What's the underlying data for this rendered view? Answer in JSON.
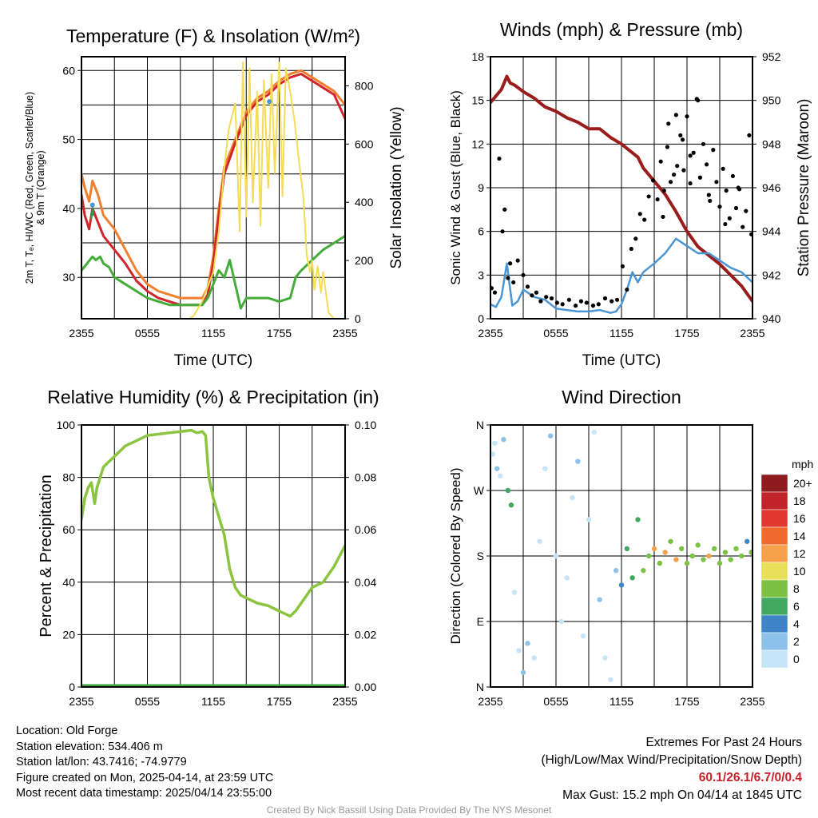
{
  "colors": {
    "temperature": "#d0262b",
    "wind_chill": "#2e9b4b",
    "dewpoint": "#44ad3a",
    "temp_9m": "#f07f2e",
    "insolation": "#f5dc55",
    "wind_speed": "#4a95d4",
    "gust": "#000000",
    "pressure": "#9b1c1c",
    "humidity": "#8bc540",
    "precip": "#3aa53a"
  },
  "chart_data": [
    {
      "id": "temp",
      "type": "line",
      "title": "Temperature (F) & Insolation (W/m²)",
      "xlabel": "Time (UTC)",
      "ylabel_left_lines": [
        "2m T, Tₑ, HI/WC (Red, Green, Scarlet/Blue)",
        "& 9m T (Orange)"
      ],
      "ylabel_right": "Solar Insolation (Yellow)",
      "x_ticks": [
        "2355",
        "0555",
        "1155",
        "1755",
        "2355"
      ],
      "ylim": [
        24,
        62
      ],
      "y_ticks": [
        30,
        40,
        50,
        60
      ],
      "y2lim": [
        0,
        900
      ],
      "y2_ticks": [
        0,
        200,
        400,
        600,
        800
      ],
      "series": [
        {
          "color_key": "temp_9m",
          "axis": "left",
          "width": 3,
          "x": [
            0,
            0.3,
            0.7,
            1,
            1.5,
            2,
            3,
            4,
            5,
            6,
            7,
            8,
            9,
            10,
            11,
            11.5,
            12,
            12.5,
            13,
            14,
            15,
            16,
            17,
            18,
            19,
            20,
            21,
            22,
            23,
            24
          ],
          "y": [
            45,
            43,
            41,
            44,
            42,
            39,
            37,
            34,
            31,
            29,
            28,
            27.5,
            27,
            27,
            27,
            28.5,
            33,
            40,
            46,
            50,
            54,
            56,
            57,
            58.5,
            59.5,
            60,
            59,
            58,
            57,
            55
          ]
        },
        {
          "color_key": "temperature",
          "axis": "left",
          "width": 3,
          "x": [
            0,
            0.3,
            0.7,
            1,
            1.5,
            2,
            3,
            4,
            5,
            6,
            7,
            8,
            9,
            10,
            11,
            11.5,
            12,
            12.5,
            13,
            14,
            15,
            16,
            17,
            18,
            19,
            20,
            21,
            22,
            23,
            24
          ],
          "y": [
            42,
            39,
            37,
            40,
            38,
            36,
            34,
            32,
            29.5,
            28,
            27,
            26.5,
            26,
            26,
            26,
            27.5,
            32,
            39,
            45,
            49.5,
            53.5,
            55.5,
            56.5,
            58,
            59,
            59.5,
            58.5,
            57.5,
            56.5,
            53
          ]
        },
        {
          "color_key": "dewpoint",
          "axis": "left",
          "width": 3,
          "x": [
            0,
            0.5,
            1,
            1.3,
            1.7,
            2,
            2.5,
            3,
            4,
            5,
            6,
            7,
            8,
            9,
            10,
            11,
            11.5,
            12,
            12.5,
            13,
            13.5,
            14,
            14.5,
            15,
            16,
            17,
            18,
            19,
            19.5,
            20,
            21,
            22,
            23,
            24
          ],
          "y": [
            31,
            32,
            33,
            32.5,
            33,
            32,
            31.5,
            30,
            29,
            28,
            27,
            26.5,
            26,
            26,
            26,
            26,
            27,
            29,
            31,
            30,
            32.5,
            29,
            25.5,
            27,
            27,
            27,
            26.5,
            27,
            30,
            31,
            32.5,
            34,
            35,
            36
          ]
        },
        {
          "color_key": "wind_chill",
          "axis": "left",
          "width": 2,
          "x": [
            0.9,
            1,
            1.1
          ],
          "y": [
            38.5,
            40,
            39
          ]
        },
        {
          "color_key": "insolation",
          "axis": "right",
          "width": 2,
          "x": [
            0,
            9.8,
            10.2,
            11,
            12,
            12.5,
            13,
            13.4,
            14,
            14.4,
            14.7,
            15,
            15.3,
            15.6,
            16,
            16.3,
            16.6,
            17,
            17.3,
            17.6,
            18,
            18.3,
            18.6,
            19,
            19.4,
            19.8,
            20.2,
            20.5,
            20.8,
            21,
            21.2,
            21.5,
            21.8,
            22,
            22.5,
            23,
            24
          ],
          "y": [
            0,
            0,
            10,
            60,
            160,
            300,
            520,
            650,
            740,
            300,
            880,
            350,
            860,
            400,
            780,
            320,
            820,
            450,
            840,
            500,
            880,
            420,
            860,
            780,
            680,
            540,
            420,
            220,
            160,
            200,
            100,
            180,
            90,
            160,
            20,
            0,
            0
          ]
        }
      ],
      "markers": [
        {
          "color_key": "wind_speed",
          "x": 1.0,
          "y": 40.5
        },
        {
          "color_key": "wind_speed",
          "x": 17.1,
          "y": 55.5
        }
      ]
    },
    {
      "id": "wind",
      "type": "line",
      "title": "Winds (mph) & Pressure (mb)",
      "xlabel": "Time (UTC)",
      "ylabel_left": "Sonic Wind & Gust (Blue, Black)",
      "ylabel_right": "Station Pressure (Maroon)",
      "x_ticks": [
        "2355",
        "0555",
        "1155",
        "1755",
        "2355"
      ],
      "ylim": [
        0,
        18
      ],
      "y_ticks": [
        0,
        3,
        6,
        9,
        12,
        15,
        18
      ],
      "y2lim": [
        940,
        952
      ],
      "y2_ticks": [
        940,
        942,
        944,
        946,
        948,
        950,
        952
      ],
      "series": [
        {
          "color_key": "pressure",
          "axis": "right",
          "width": 4,
          "x": [
            0,
            0.5,
            1,
            1.5,
            1.8,
            2.2,
            3,
            4,
            5,
            6,
            7,
            8,
            9,
            10,
            11,
            12,
            13,
            13.5,
            14,
            15,
            16,
            17,
            18,
            19,
            20,
            21,
            22,
            23,
            24
          ],
          "y": [
            949.9,
            950.2,
            950.5,
            951.1,
            950.8,
            950.7,
            950.4,
            950.1,
            949.7,
            949.5,
            949.2,
            949.0,
            948.7,
            948.7,
            948.3,
            948.0,
            947.6,
            947.4,
            946.9,
            946.3,
            945.7,
            944.9,
            944.0,
            943.3,
            942.9,
            942.5,
            942.0,
            941.5,
            940.8
          ]
        },
        {
          "color_key": "wind_speed",
          "axis": "left",
          "width": 2.5,
          "x": [
            0,
            0.5,
            1,
            1.5,
            2,
            2.5,
            3,
            4,
            5,
            6,
            7,
            8,
            9,
            10,
            11,
            11.5,
            12,
            12.5,
            13,
            13.5,
            14,
            15,
            16,
            17,
            18,
            19,
            20,
            21,
            22,
            23,
            24
          ],
          "y": [
            1.0,
            0.8,
            1.5,
            3.8,
            0.9,
            1.2,
            2.0,
            1.5,
            1.3,
            0.7,
            0.6,
            0.5,
            0.5,
            0.6,
            0.4,
            0.5,
            1.0,
            2.0,
            3.2,
            2.5,
            3.2,
            3.8,
            4.5,
            5.5,
            5.0,
            4.5,
            4.5,
            4.0,
            3.5,
            3.2,
            2.5
          ]
        },
        {
          "color_key": "gust",
          "axis": "left",
          "width": 0,
          "points": true,
          "x": [
            0.1,
            0.4,
            0.8,
            1.1,
            1.3,
            1.6,
            1.8,
            2.1,
            2.5,
            3.0,
            3.4,
            3.8,
            4.2,
            4.6,
            5.1,
            5.6,
            6.1,
            6.6,
            7.2,
            7.8,
            8.3,
            8.8,
            9.4,
            9.9,
            10.5,
            11.1,
            11.6,
            12.1,
            12.5,
            12.9,
            13.3,
            13.7,
            14.1,
            14.5,
            14.9,
            15.3,
            15.6,
            15.9,
            16.2,
            16.5,
            16.8,
            17.1,
            17.4,
            17.7,
            18.0,
            18.3,
            18.6,
            18.9,
            19.2,
            19.5,
            19.8,
            20.1,
            20.4,
            20.7,
            21.0,
            21.3,
            21.6,
            21.9,
            22.2,
            22.5,
            22.8,
            23.1,
            23.4,
            23.7,
            23.9,
            16.3,
            17.0,
            17.6,
            18.3,
            15.8,
            19.0,
            20.0,
            21.5,
            22.7
          ],
          "y": [
            2.1,
            1.8,
            11.0,
            6.0,
            7.5,
            2.8,
            3.8,
            2.5,
            4.0,
            3.0,
            2.2,
            1.6,
            1.8,
            1.2,
            1.5,
            1.4,
            1.1,
            1.0,
            1.3,
            0.9,
            1.2,
            1.1,
            0.9,
            1.0,
            1.4,
            1.2,
            1.3,
            3.6,
            2.0,
            4.8,
            5.5,
            7.2,
            6.8,
            8.4,
            9.5,
            8.2,
            10.8,
            8.8,
            11.8,
            9.4,
            9.9,
            10.5,
            12.6,
            10.2,
            13.9,
            9.3,
            11.4,
            15.1,
            9.7,
            12.0,
            10.6,
            8.1,
            11.6,
            9.4,
            7.7,
            10.3,
            8.8,
            6.9,
            9.8,
            7.6,
            8.9,
            6.3,
            7.4,
            12.6,
            5.8,
            13.4,
            14.0,
            12.3,
            11.2,
            7.0,
            15.0,
            8.5,
            6.5,
            9.0
          ]
        }
      ]
    },
    {
      "id": "rh",
      "type": "line",
      "title": "Relative Humidity (%) & Precipitation (in)",
      "xlabel": "",
      "ylabel_left": "Percent & Precipitation",
      "ylabel_right": "",
      "x_ticks": [
        "2355",
        "0555",
        "1155",
        "1755",
        "2355"
      ],
      "ylim": [
        0,
        100
      ],
      "y_ticks": [
        0,
        20,
        40,
        60,
        80,
        100
      ],
      "y2lim": [
        0,
        0.1
      ],
      "y2_ticks": [
        "0.00",
        "0.02",
        "0.04",
        "0.06",
        "0.08",
        "0.10"
      ],
      "series": [
        {
          "color_key": "humidity",
          "axis": "left",
          "width": 3.5,
          "x": [
            0,
            0.3,
            0.6,
            0.9,
            1.2,
            1.4,
            1.7,
            2.0,
            2.5,
            3,
            3.5,
            4,
            5,
            6,
            7,
            8,
            9,
            10,
            10.5,
            11,
            11.3,
            11.6,
            12,
            12.5,
            13,
            13.5,
            14,
            14.5,
            15,
            16,
            17,
            17.5,
            18,
            18.5,
            19,
            19.5,
            20,
            21,
            22,
            23,
            24
          ],
          "y": [
            64,
            72,
            76,
            78,
            70,
            76,
            80,
            84,
            86,
            88,
            90,
            92,
            94,
            96,
            96.5,
            97,
            97.5,
            98,
            97,
            97.5,
            96,
            80,
            72,
            65,
            58,
            45,
            38,
            35,
            34,
            32,
            31,
            30,
            29,
            28,
            27,
            29,
            32,
            38,
            40,
            46,
            54
          ]
        },
        {
          "color_key": "precip",
          "axis": "left",
          "width": 7,
          "x": [
            0,
            24
          ],
          "y": [
            0,
            0
          ]
        }
      ]
    },
    {
      "id": "dir",
      "type": "scatter",
      "title": "Wind Direction",
      "xlabel": "",
      "ylabel_left": "Direction (Colored By Speed)",
      "x_ticks": [
        "2355",
        "0555",
        "1155",
        "1755",
        "2355"
      ],
      "ylim": [
        0,
        360
      ],
      "y_tick_labels": [
        "N",
        "E",
        "S",
        "W",
        "N"
      ],
      "y_tick_values": [
        0,
        90,
        180,
        270,
        360
      ],
      "colorbar": {
        "unit": "mph",
        "labels": [
          "20+",
          "18",
          "16",
          "14",
          "12",
          "10",
          "8",
          "6",
          "4",
          "2",
          "0"
        ],
        "colors": [
          "#8e1b1e",
          "#c0242a",
          "#e1392e",
          "#ef6a2e",
          "#f5a14c",
          "#e9df5b",
          "#7bc144",
          "#42a860",
          "#3d85c6",
          "#8cc2ea",
          "#c7e5f8"
        ]
      },
      "points": [
        [
          0.2,
          320,
          0
        ],
        [
          0.4,
          335,
          0
        ],
        [
          0.6,
          300,
          1
        ],
        [
          0.9,
          290,
          0
        ],
        [
          1.2,
          340,
          1
        ],
        [
          1.6,
          270,
          3
        ],
        [
          1.9,
          250,
          3
        ],
        [
          2.2,
          130,
          0
        ],
        [
          2.6,
          50,
          0
        ],
        [
          3.0,
          20,
          1
        ],
        [
          3.4,
          60,
          1
        ],
        [
          4.0,
          40,
          0
        ],
        [
          4.5,
          200,
          0
        ],
        [
          5.0,
          300,
          0
        ],
        [
          5.5,
          345,
          1
        ],
        [
          6.0,
          180,
          0
        ],
        [
          6.5,
          90,
          0
        ],
        [
          7.0,
          150,
          0
        ],
        [
          7.5,
          260,
          0
        ],
        [
          8.0,
          310,
          1
        ],
        [
          8.5,
          70,
          0
        ],
        [
          9.0,
          230,
          0
        ],
        [
          9.5,
          350,
          0
        ],
        [
          10.0,
          120,
          1
        ],
        [
          10.5,
          40,
          0
        ],
        [
          11.0,
          10,
          0
        ],
        [
          11.5,
          160,
          1
        ],
        [
          12.0,
          140,
          2
        ],
        [
          12.5,
          190,
          3
        ],
        [
          13.0,
          150,
          3
        ],
        [
          13.5,
          230,
          3
        ],
        [
          14.0,
          160,
          4
        ],
        [
          14.5,
          180,
          4
        ],
        [
          15.0,
          190,
          6
        ],
        [
          15.5,
          170,
          4
        ],
        [
          16.0,
          185,
          6
        ],
        [
          16.5,
          200,
          4
        ],
        [
          17.0,
          175,
          6
        ],
        [
          17.5,
          190,
          4
        ],
        [
          18.0,
          170,
          4
        ],
        [
          18.5,
          180,
          4
        ],
        [
          19.0,
          195,
          4
        ],
        [
          19.5,
          175,
          4
        ],
        [
          20.0,
          180,
          6
        ],
        [
          20.5,
          190,
          4
        ],
        [
          21.0,
          170,
          4
        ],
        [
          21.5,
          185,
          4
        ],
        [
          22.0,
          175,
          4
        ],
        [
          22.5,
          190,
          4
        ],
        [
          23.0,
          180,
          4
        ],
        [
          23.5,
          200,
          2
        ],
        [
          23.9,
          185,
          4
        ]
      ]
    }
  ],
  "footer": {
    "location": "Location: Old Forge",
    "elevation": "Station elevation: 534.406 m",
    "latlon": "Station lat/lon: 43.7416; -74.9779",
    "created": "Figure created on Mon, 2025-04-14, at 23:59 UTC",
    "recent": "Most recent data timestamp: 2025/04/14 23:55:00",
    "extremes_title": "Extremes For Past 24 Hours",
    "extremes_legend": "(High/Low/Max Wind/Precipitation/Snow Depth)",
    "extremes_values": "60.1/26.1/6.7/0/0.4",
    "max_gust": "Max Gust: 15.2 mph On 04/14 at 1845 UTC",
    "credit": "Created By Nick Bassill Using Data Provided By The NYS Mesonet"
  }
}
